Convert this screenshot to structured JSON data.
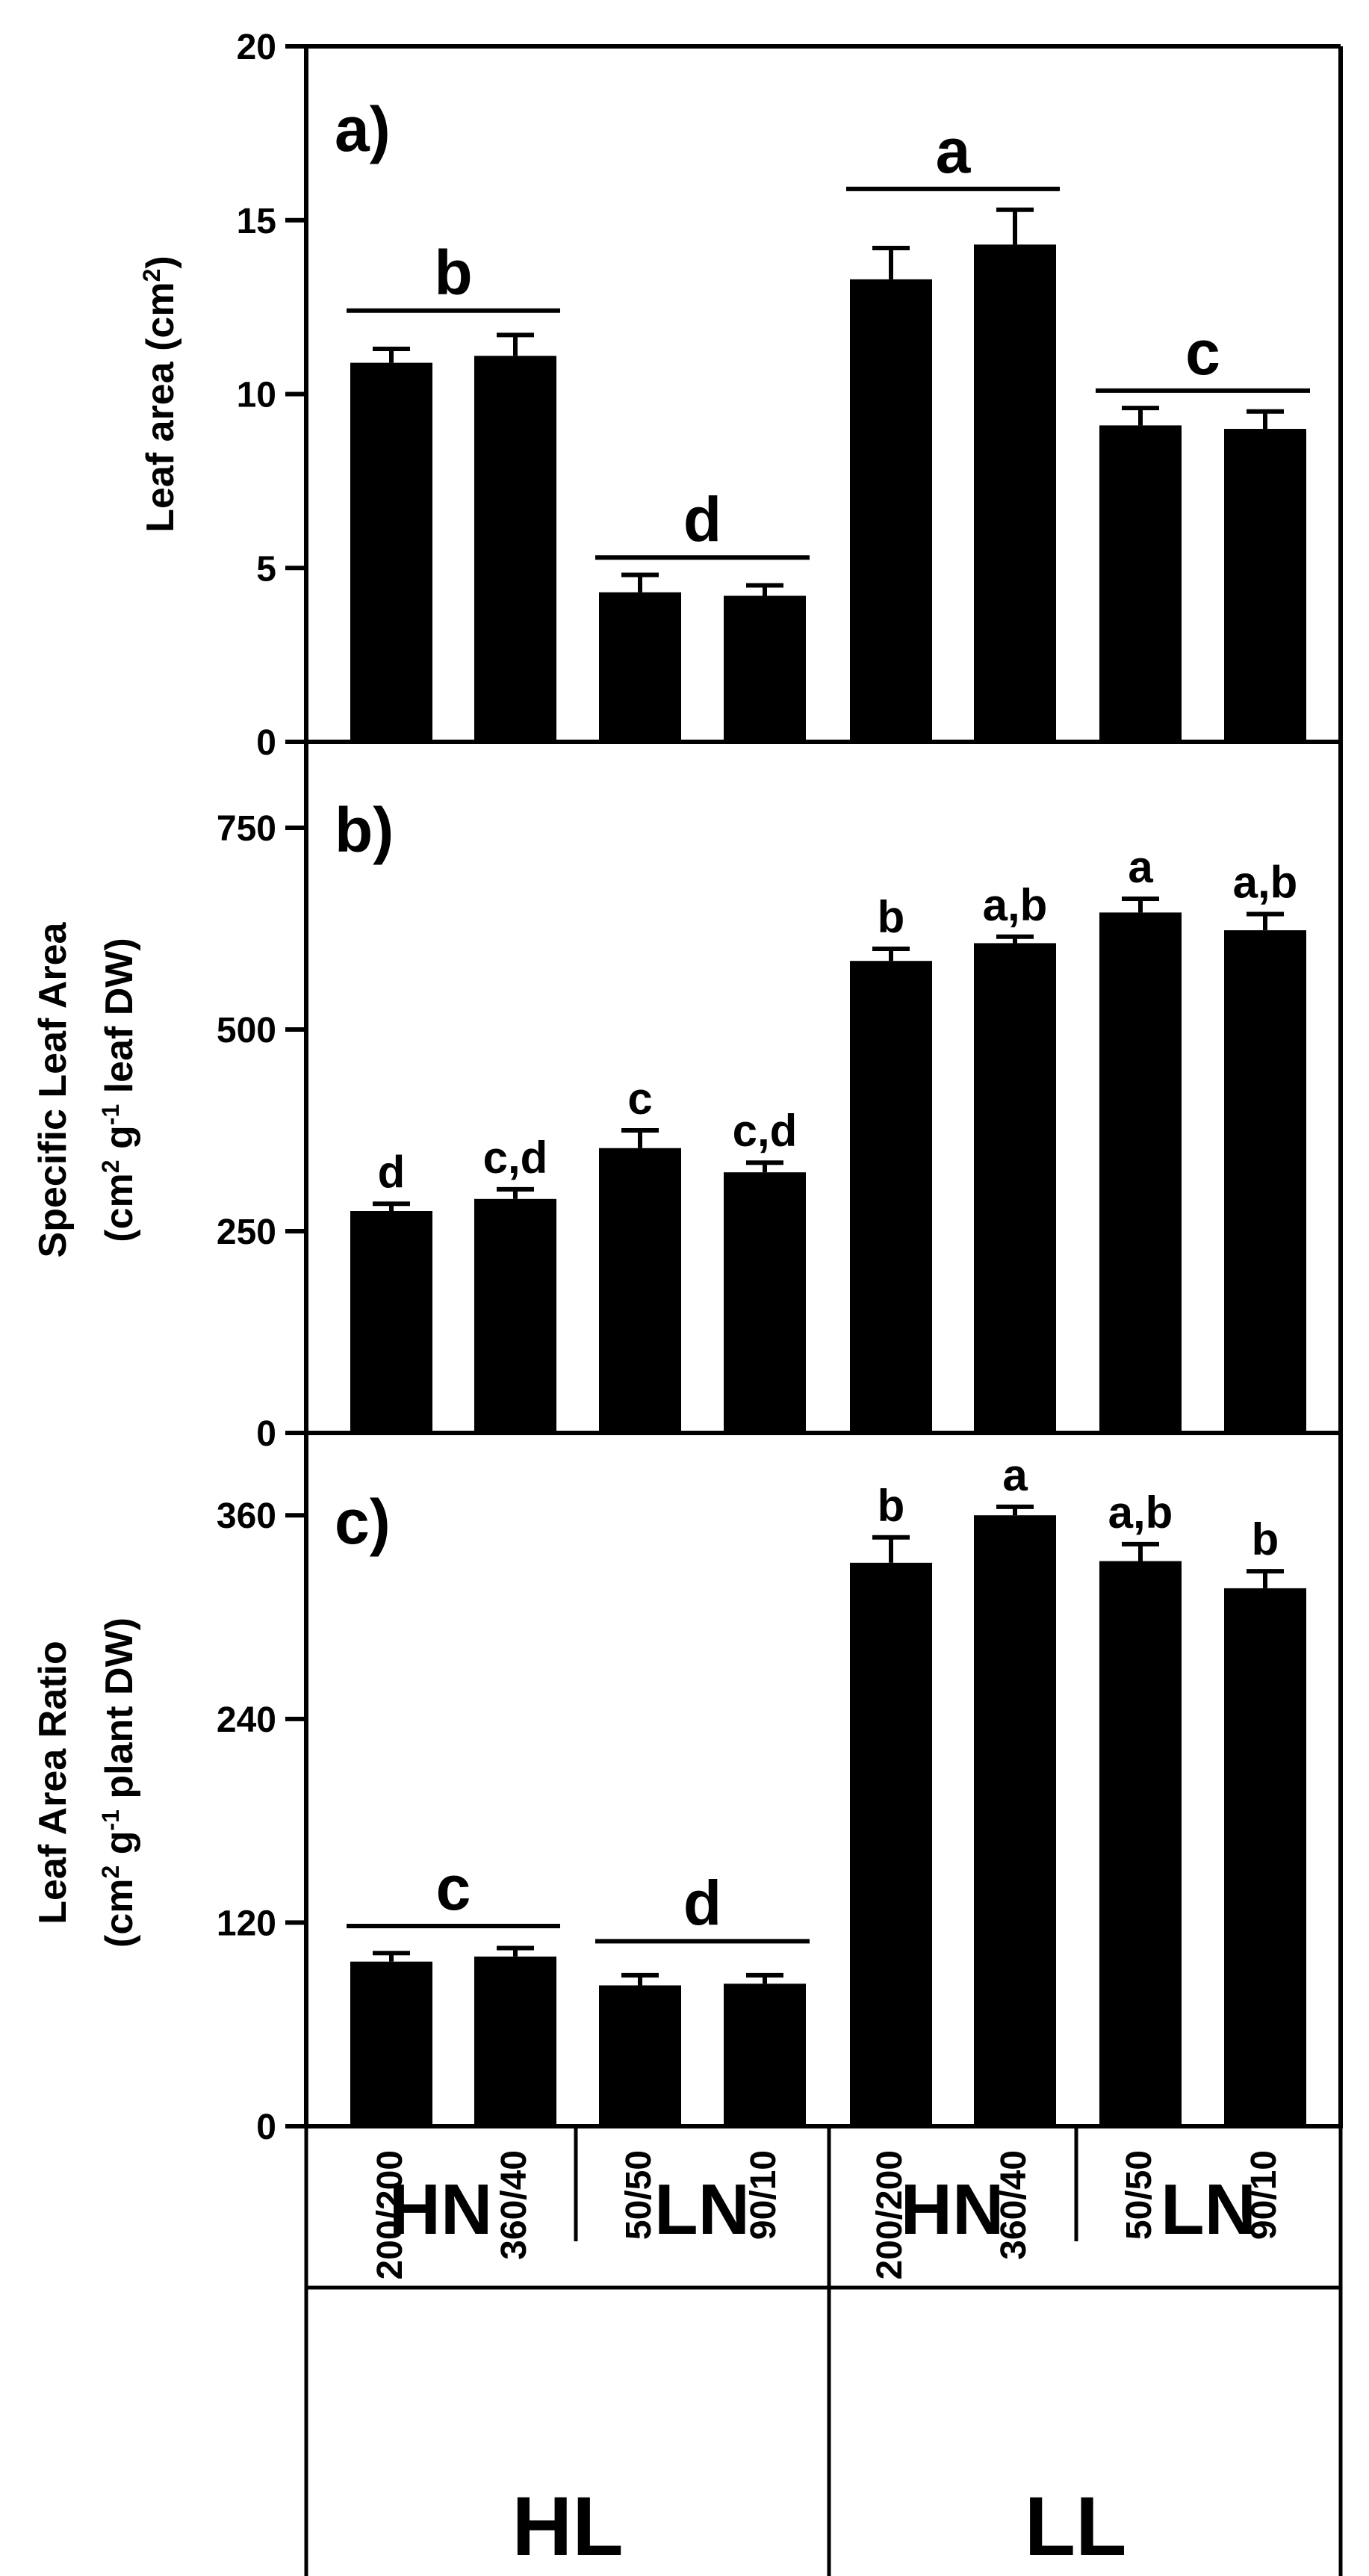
{
  "chart_data": [
    {
      "type": "bar",
      "panel_label": "a)",
      "ylabel_lines": [
        [
          {
            "t": "Leaf area (cm"
          },
          {
            "t": "2",
            "sup": true
          },
          {
            "t": ")"
          }
        ]
      ],
      "ylim": [
        0,
        20
      ],
      "yticks": [
        0,
        5,
        10,
        15,
        20
      ],
      "values": [
        10.9,
        11.1,
        4.3,
        4.2,
        13.3,
        14.3,
        9.1,
        9.0
      ],
      "errors": [
        0.4,
        0.6,
        0.5,
        0.3,
        0.9,
        1.0,
        0.5,
        0.5
      ],
      "bar_letters": [
        "",
        "",
        "",
        "",
        "",
        "",
        "",
        ""
      ],
      "group_letters": [
        {
          "from": 0,
          "to": 1,
          "letter": "b",
          "y": 12.4
        },
        {
          "from": 2,
          "to": 3,
          "letter": "d",
          "y": 5.3
        },
        {
          "from": 4,
          "to": 5,
          "letter": "a",
          "y": 15.9
        },
        {
          "from": 6,
          "to": 7,
          "letter": "c",
          "y": 10.1
        }
      ]
    },
    {
      "type": "bar",
      "panel_label": "b)",
      "ylabel_lines": [
        [
          {
            "t": "Specific Leaf Area"
          }
        ],
        [
          {
            "t": "(cm"
          },
          {
            "t": "2",
            "sup": true
          },
          {
            "t": " g"
          },
          {
            "t": "-1",
            "sup": true
          },
          {
            "t": " leaf DW)"
          }
        ]
      ],
      "ylim": [
        0,
        850
      ],
      "yticks": [
        0,
        250,
        500,
        750
      ],
      "values": [
        275,
        290,
        353,
        323,
        585,
        607,
        645,
        623
      ],
      "errors": [
        9,
        12,
        22,
        12,
        15,
        8,
        17,
        20
      ],
      "bar_letters": [
        "d",
        "c,d",
        "c",
        "c,d",
        "b",
        "a,b",
        "a",
        "a,b"
      ],
      "group_letters": []
    },
    {
      "type": "bar",
      "panel_label": "c)",
      "ylabel_lines": [
        [
          {
            "t": "Leaf Area Ratio"
          }
        ],
        [
          {
            "t": "(cm"
          },
          {
            "t": "2",
            "sup": true
          },
          {
            "t": " g"
          },
          {
            "t": "-1",
            "sup": true
          },
          {
            "t": " plant DW)"
          }
        ]
      ],
      "ylim": [
        0,
        405
      ],
      "yticks": [
        0,
        120,
        240,
        360
      ],
      "values": [
        97,
        100,
        83,
        84,
        332,
        360,
        333,
        317
      ],
      "errors": [
        5,
        5,
        6,
        5,
        15,
        5,
        10,
        10
      ],
      "bar_letters": [
        "",
        "",
        "",
        "",
        "b",
        "a",
        "a,b",
        "b"
      ],
      "group_letters": [
        {
          "from": 0,
          "to": 1,
          "letter": "c",
          "y": 118
        },
        {
          "from": 2,
          "to": 3,
          "letter": "d",
          "y": 109
        }
      ]
    }
  ],
  "categories": [
    "200/200",
    "360/40",
    "50/50",
    "90/10",
    "200/200",
    "360/40",
    "50/50",
    "90/10"
  ],
  "nitrogen_groups": [
    "HN",
    "LN",
    "HN",
    "LN"
  ],
  "light_groups": [
    "HL",
    "LL"
  ]
}
